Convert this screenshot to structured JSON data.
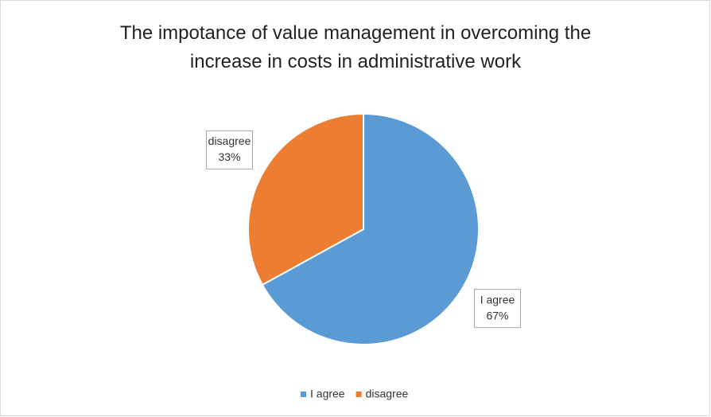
{
  "chart_data": {
    "type": "pie",
    "title": "The impotance of value management in overcoming the increase in costs in administrative work",
    "categories": [
      "I agree",
      "disagree"
    ],
    "values": [
      67,
      33
    ],
    "value_labels": [
      "67%",
      "33%"
    ],
    "colors": [
      "#5b9bd5",
      "#ed7d31"
    ],
    "legend": "bottom"
  }
}
